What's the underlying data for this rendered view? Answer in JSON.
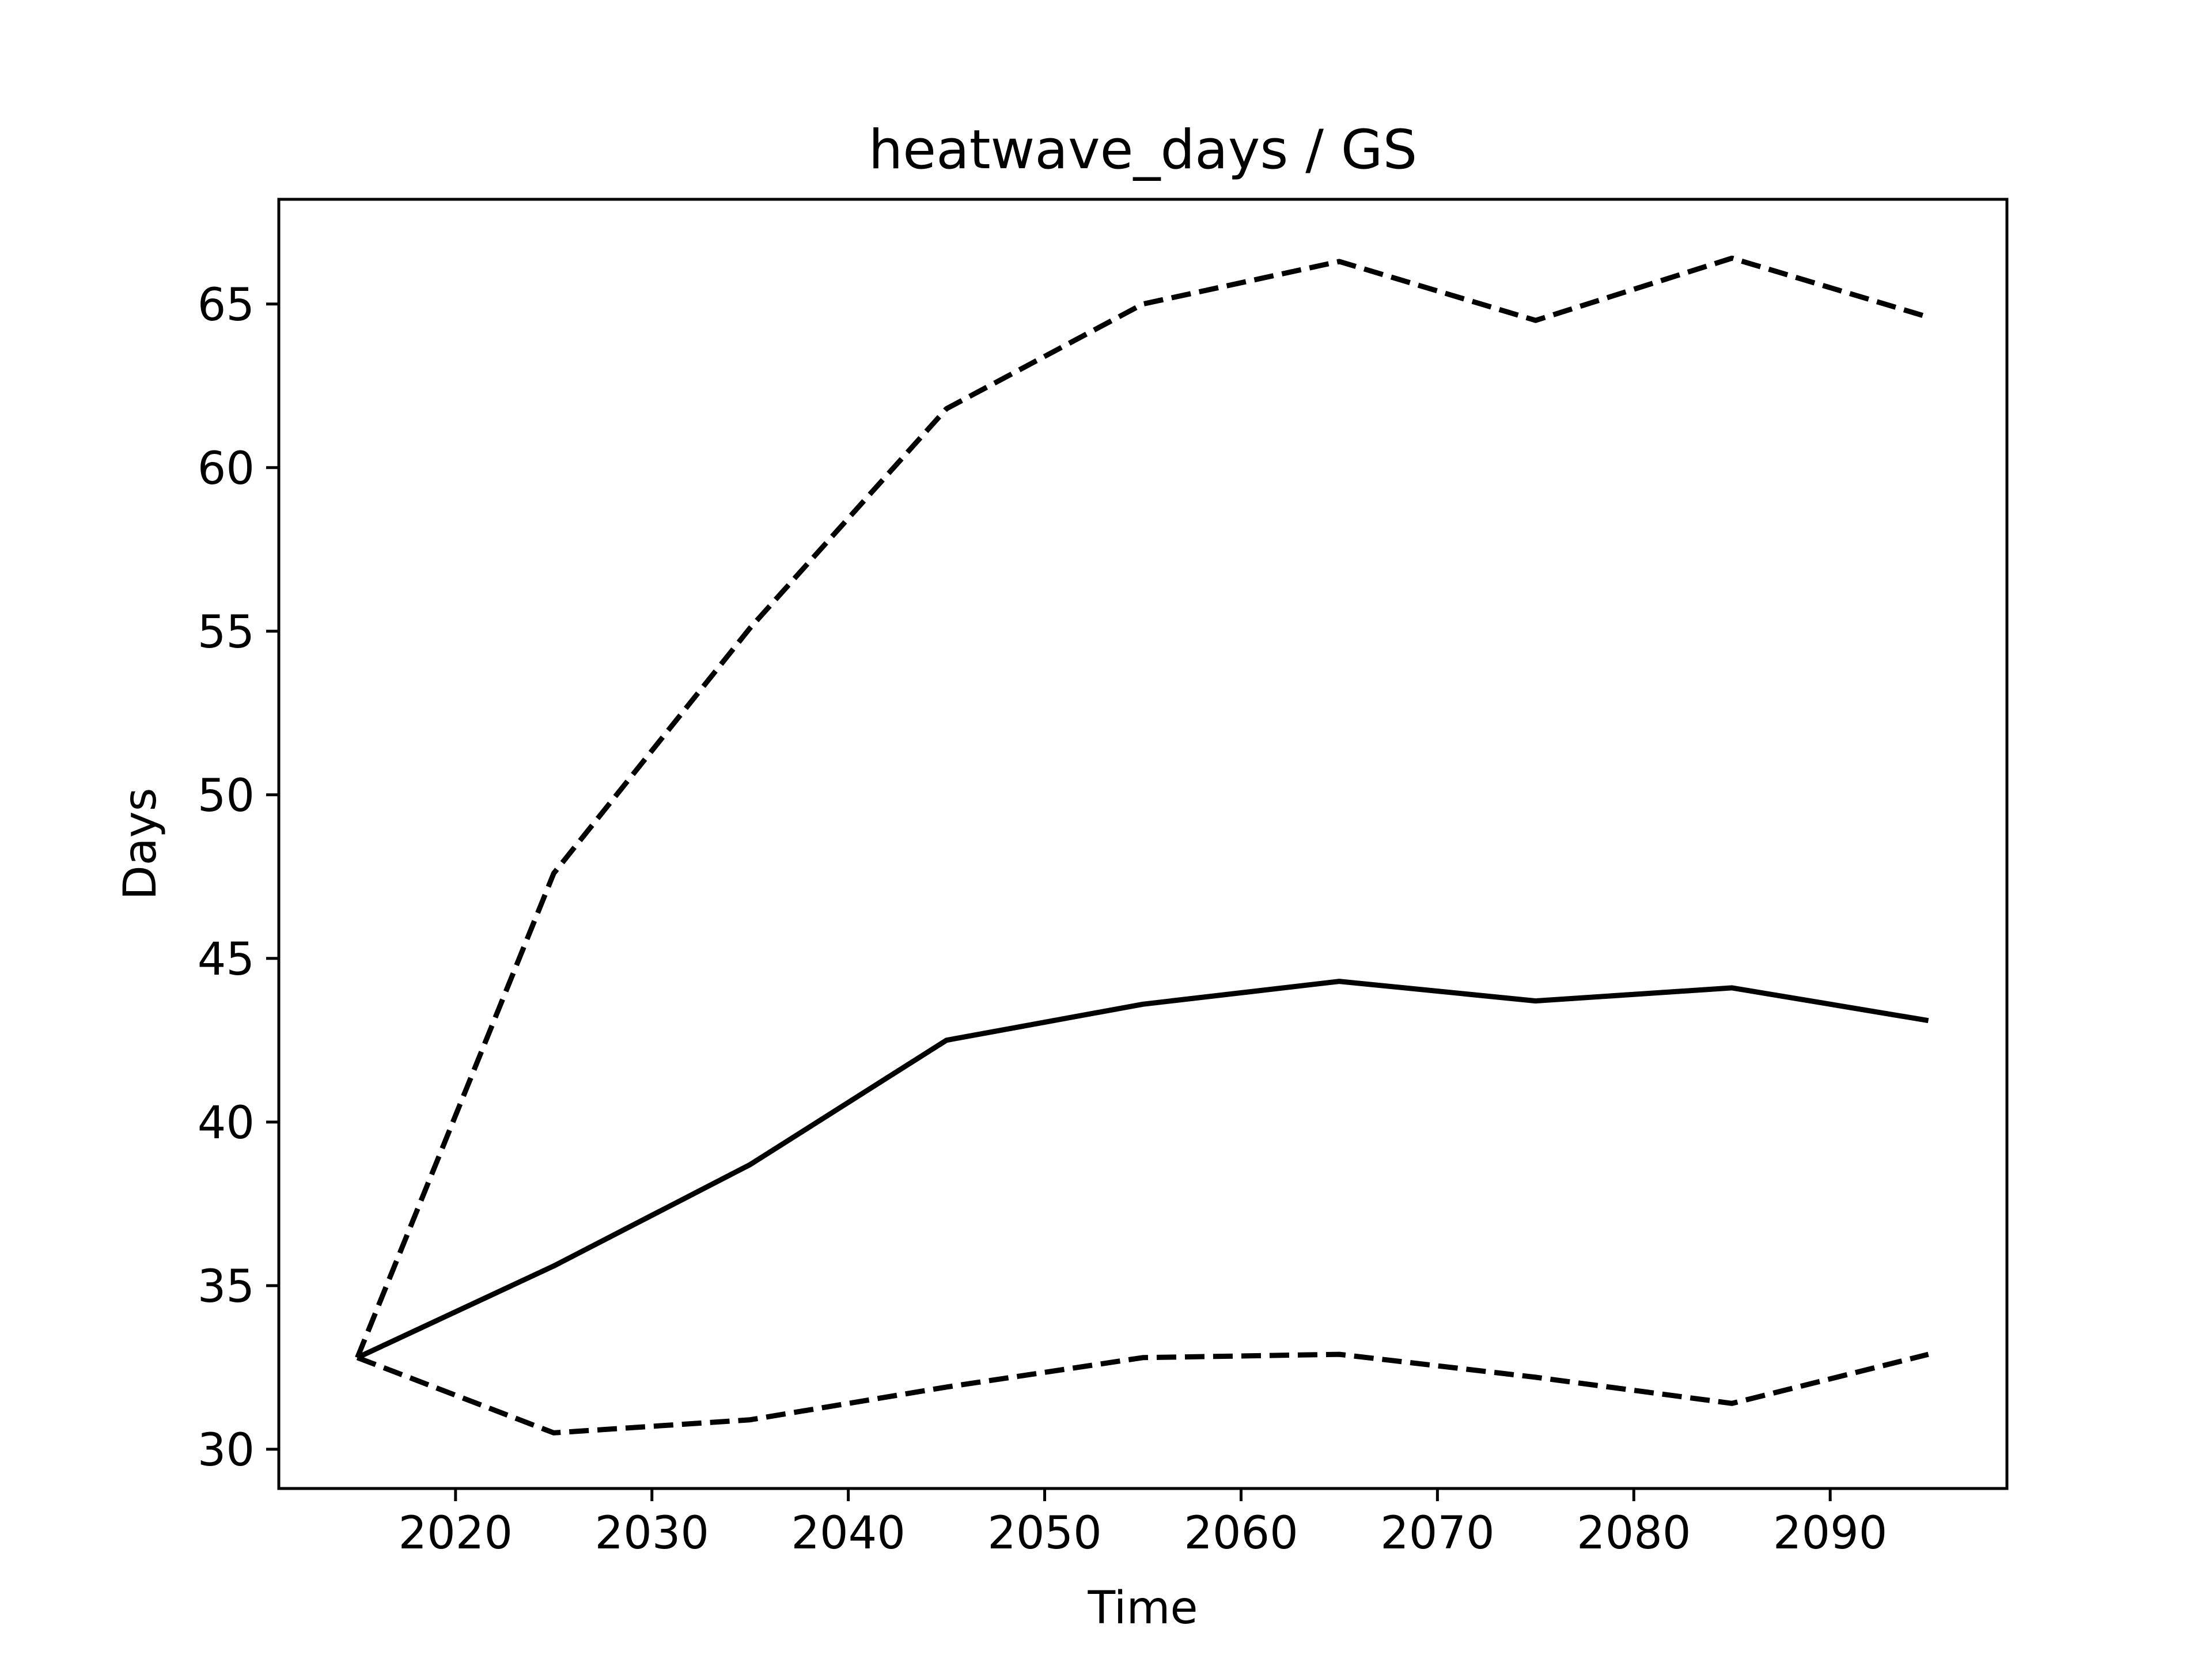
{
  "chart_data": {
    "type": "line",
    "title": "heatwave_days / GS",
    "xlabel": "Time",
    "ylabel": "Days",
    "xlim": [
      2011,
      2099
    ],
    "ylim": [
      28.8,
      68.2
    ],
    "xticks": [
      2020,
      2030,
      2040,
      2050,
      2060,
      2070,
      2080,
      2090
    ],
    "yticks": [
      30,
      35,
      40,
      45,
      50,
      55,
      60,
      65
    ],
    "grid": false,
    "x": [
      2015,
      2025,
      2035,
      2045,
      2055,
      2065,
      2075,
      2085,
      2095
    ],
    "series": [
      {
        "style": "solid",
        "color": "#000000",
        "values": [
          32.8,
          35.6,
          38.7,
          42.5,
          43.6,
          44.3,
          43.7,
          44.1,
          43.1
        ]
      },
      {
        "style": "dashed",
        "color": "#000000",
        "values": [
          32.8,
          47.6,
          55.1,
          61.8,
          65.0,
          66.3,
          64.5,
          66.4,
          64.6
        ]
      },
      {
        "style": "dashed",
        "color": "#000000",
        "values": [
          32.8,
          30.5,
          30.9,
          31.9,
          32.8,
          32.9,
          32.2,
          31.4,
          32.9
        ]
      }
    ]
  }
}
